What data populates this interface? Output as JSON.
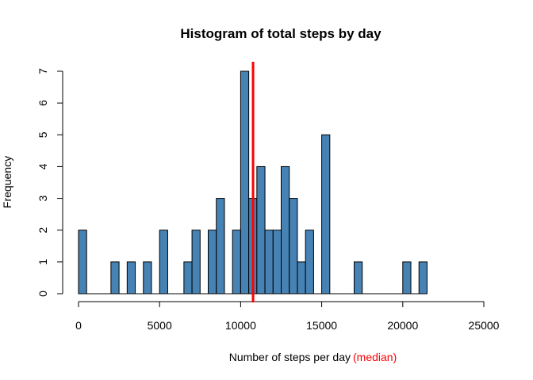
{
  "chart_data": {
    "type": "bar",
    "title": "Histogram of total steps by day",
    "xlabel": "Number of steps per day",
    "xlabel_suffix": "(median)",
    "ylabel": "Frequency",
    "xlim": [
      0,
      25000
    ],
    "ylim": [
      0,
      7
    ],
    "x_ticks": [
      "0",
      "5000",
      "10000",
      "15000",
      "20000",
      "25000"
    ],
    "x_tick_values": [
      0,
      5000,
      10000,
      15000,
      20000,
      25000
    ],
    "y_ticks": [
      "0",
      "1",
      "2",
      "3",
      "4",
      "5",
      "6",
      "7"
    ],
    "y_tick_values": [
      0,
      1,
      2,
      3,
      4,
      5,
      6,
      7
    ],
    "bin_width": 500,
    "bins_start": [
      0,
      500,
      1000,
      1500,
      2000,
      2500,
      3000,
      3500,
      4000,
      4500,
      5000,
      5500,
      6000,
      6500,
      7000,
      7500,
      8000,
      8500,
      9000,
      9500,
      10000,
      10500,
      11000,
      11500,
      12000,
      12500,
      13000,
      13500,
      14000,
      14500,
      15000,
      15500,
      16000,
      16500,
      17000,
      17500,
      18000,
      18500,
      19000,
      19500,
      20000,
      20500,
      21000
    ],
    "values": [
      2,
      0,
      0,
      0,
      1,
      0,
      1,
      0,
      1,
      0,
      2,
      0,
      0,
      1,
      2,
      0,
      2,
      3,
      0,
      2,
      7,
      3,
      4,
      2,
      2,
      4,
      3,
      1,
      2,
      0,
      5,
      0,
      0,
      0,
      1,
      0,
      0,
      0,
      0,
      0,
      1,
      0,
      1
    ],
    "median": 10765,
    "bar_color": "#4682b4",
    "median_color": "#ff0000",
    "grid": false
  }
}
